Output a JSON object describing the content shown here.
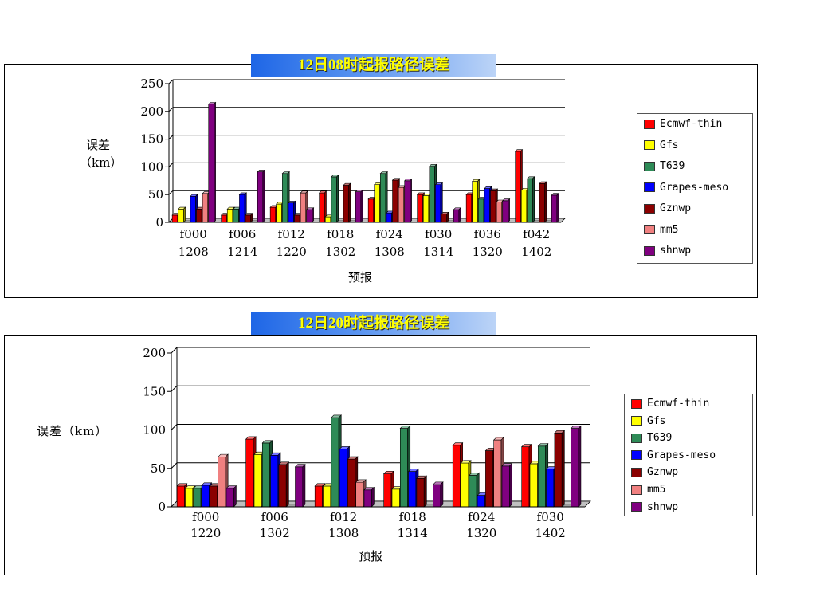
{
  "series_colors": [
    "#ff0000",
    "#ffff00",
    "#2e8b57",
    "#0000ff",
    "#8b0000",
    "#f08080",
    "#800080"
  ],
  "chart_data": [
    {
      "type": "bar",
      "title": "12日08时起报路径误差",
      "xlabel": "预报",
      "ylabel_top": "误差",
      "ylabel_bottom": "（km）",
      "ylim": [
        0,
        250
      ],
      "yticks": [
        "0",
        "50",
        "100",
        "150",
        "200",
        "250"
      ],
      "categories": [
        "f000",
        "f006",
        "f012",
        "f018",
        "f024",
        "f030",
        "f036",
        "f042"
      ],
      "categories_line2": [
        "1208",
        "1214",
        "1220",
        "1302",
        "1308",
        "1314",
        "1320",
        "1402"
      ],
      "legend_position": "right",
      "grid": true,
      "series": [
        {
          "name": "Ecmwf-thin",
          "values": [
            13,
            13,
            27,
            53,
            42,
            50,
            50,
            128
          ]
        },
        {
          "name": "Gfs",
          "values": [
            24,
            24,
            33,
            10,
            68,
            48,
            74,
            58
          ]
        },
        {
          "name": "T639",
          "values": [
            0,
            24,
            88,
            82,
            88,
            101,
            42,
            79
          ]
        },
        {
          "name": "Grapes-meso",
          "values": [
            47,
            50,
            35,
            0,
            17,
            68,
            61,
            0
          ]
        },
        {
          "name": "Gznwp",
          "values": [
            24,
            13,
            13,
            67,
            76,
            15,
            57,
            70
          ]
        },
        {
          "name": "mm5",
          "values": [
            52,
            0,
            53,
            0,
            63,
            0,
            37,
            0
          ]
        },
        {
          "name": "shnwp",
          "values": [
            213,
            91,
            23,
            55,
            75,
            23,
            39,
            49
          ]
        }
      ]
    },
    {
      "type": "bar",
      "title": "12日20时起报路径误差",
      "xlabel": "预报",
      "ylabel": "误差（km）",
      "ylim": [
        0,
        200
      ],
      "yticks": [
        "0",
        "50",
        "100",
        "150",
        "200"
      ],
      "categories": [
        "f000",
        "f006",
        "f012",
        "f018",
        "f024",
        "f030"
      ],
      "categories_line2": [
        "1220",
        "1302",
        "1308",
        "1314",
        "1320",
        "1402"
      ],
      "legend_position": "right",
      "grid": true,
      "series": [
        {
          "name": "Ecmwf-thin",
          "values": [
            27,
            88,
            27,
            43,
            80,
            78
          ]
        },
        {
          "name": "Gfs",
          "values": [
            24,
            68,
            27,
            23,
            57,
            56
          ]
        },
        {
          "name": "T639",
          "values": [
            24,
            83,
            116,
            102,
            41,
            79
          ]
        },
        {
          "name": "Grapes-meso",
          "values": [
            28,
            67,
            75,
            46,
            15,
            49
          ]
        },
        {
          "name": "Gznwp",
          "values": [
            27,
            55,
            62,
            37,
            73,
            96
          ]
        },
        {
          "name": "mm5",
          "values": [
            65,
            0,
            32,
            0,
            87,
            0
          ]
        },
        {
          "name": "shnwp",
          "values": [
            24,
            52,
            22,
            29,
            53,
            102
          ]
        }
      ]
    }
  ]
}
